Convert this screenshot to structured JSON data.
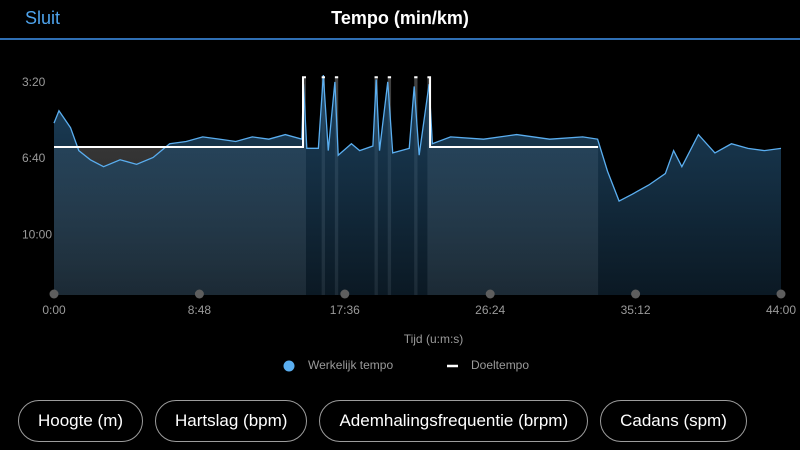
{
  "header": {
    "close": "Sluit",
    "title": "Tempo (min/km)"
  },
  "chart_data": {
    "type": "line",
    "x_label": "Tijd (u:m:s)",
    "xlim": [
      0,
      44
    ],
    "xticks": [
      {
        "value": 0,
        "label": "0:00"
      },
      {
        "value": 8.8,
        "label": "8:48"
      },
      {
        "value": 17.6,
        "label": "17:36"
      },
      {
        "value": 26.4,
        "label": "26:24"
      },
      {
        "value": 35.2,
        "label": "35:12"
      },
      {
        "value": 44,
        "label": "44:00"
      }
    ],
    "ylim": [
      3.0,
      12.6
    ],
    "y_inverted": true,
    "yticks": [
      {
        "value": 3.333,
        "label": "3:20"
      },
      {
        "value": 6.667,
        "label": "6:40"
      },
      {
        "value": 10,
        "label": "10:00"
      }
    ],
    "grid": false,
    "series": [
      {
        "name": "Werkelijk tempo",
        "color": "#5aaef0",
        "area_color": "#1f4766",
        "x": [
          0,
          0.3,
          1,
          1.5,
          2.2,
          3,
          4,
          5,
          6,
          7,
          8,
          9,
          10,
          11,
          12,
          13,
          14,
          15,
          15.1,
          15.3,
          16.0,
          16.3,
          16.6,
          17.0,
          17.2,
          18,
          18.5,
          19.3,
          19.5,
          19.7,
          20.2,
          20.5,
          21.5,
          21.8,
          22.1,
          22.7,
          22.9,
          24,
          26,
          28,
          30,
          32,
          32.9,
          33.5,
          34.2,
          35,
          36,
          37,
          37.5,
          38,
          39,
          40,
          41,
          42,
          43,
          44
        ],
        "values": [
          5.1,
          4.56,
          5.3,
          6.3,
          6.7,
          7.0,
          6.7,
          6.9,
          6.6,
          6.0,
          5.9,
          5.7,
          5.8,
          5.9,
          5.7,
          5.8,
          5.6,
          5.8,
          3.4,
          6.2,
          6.2,
          3.0,
          6.3,
          3.3,
          6.5,
          6.0,
          6.3,
          6.1,
          3.2,
          6.3,
          3.3,
          6.4,
          6.2,
          3.5,
          6.5,
          3.4,
          6.0,
          5.7,
          5.8,
          5.6,
          5.8,
          5.7,
          5.8,
          7.2,
          8.5,
          8.2,
          7.8,
          7.3,
          6.3,
          7.0,
          5.6,
          6.4,
          6.0,
          6.2,
          6.3,
          6.2
        ]
      },
      {
        "name": "Doeltempo",
        "color": "#ffffff",
        "area_color": "#4a4a4a",
        "x": [
          0,
          15.07,
          15.07,
          15.25,
          null,
          16.2,
          16.4,
          null,
          17.0,
          17.2,
          null,
          19.4,
          19.6,
          null,
          20.2,
          20.4,
          null,
          21.8,
          22.0,
          null,
          22.6,
          22.76,
          22.76,
          32.93
        ],
        "values": [
          6.14,
          6.14,
          3.1,
          3.1,
          null,
          3.1,
          3.1,
          null,
          3.1,
          3.1,
          null,
          3.1,
          3.1,
          null,
          3.1,
          3.1,
          null,
          3.1,
          3.1,
          null,
          3.1,
          3.1,
          6.14,
          6.14
        ]
      }
    ]
  },
  "tabs": [
    "Hoogte (m)",
    "Hartslag (bpm)",
    "Ademhalingsfrequentie (brpm)",
    "Cadans (spm)"
  ]
}
